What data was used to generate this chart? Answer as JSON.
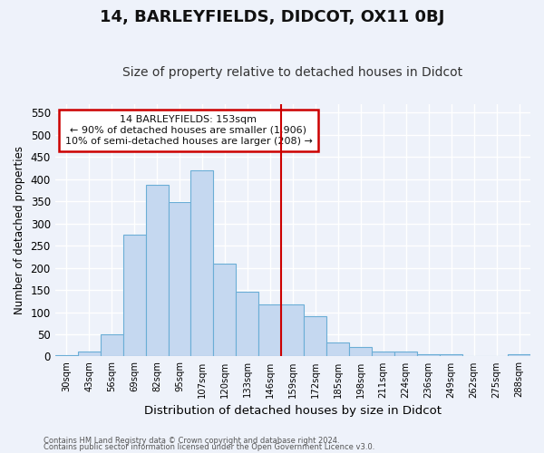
{
  "title": "14, BARLEYFIELDS, DIDCOT, OX11 0BJ",
  "subtitle": "Size of property relative to detached houses in Didcot",
  "xlabel": "Distribution of detached houses by size in Didcot",
  "ylabel": "Number of detached properties",
  "categories": [
    "30sqm",
    "43sqm",
    "56sqm",
    "69sqm",
    "82sqm",
    "95sqm",
    "107sqm",
    "120sqm",
    "133sqm",
    "146sqm",
    "159sqm",
    "172sqm",
    "185sqm",
    "198sqm",
    "211sqm",
    "224sqm",
    "236sqm",
    "249sqm",
    "262sqm",
    "275sqm",
    "288sqm"
  ],
  "values": [
    3,
    12,
    49,
    275,
    387,
    348,
    420,
    209,
    145,
    117,
    117,
    90,
    31,
    21,
    12,
    12,
    5,
    4,
    0,
    0,
    4
  ],
  "bar_color": "#c5d8f0",
  "bar_edge_color": "#6baed6",
  "background_color": "#eef2fa",
  "grid_color": "#ffffff",
  "vline_x_index": 10,
  "vline_color": "#cc0000",
  "annotation_text": "14 BARLEYFIELDS: 153sqm\n← 90% of detached houses are smaller (1,906)\n10% of semi-detached houses are larger (208) →",
  "annotation_box_facecolor": "#ffffff",
  "annotation_box_edgecolor": "#cc0000",
  "ylim": [
    0,
    570
  ],
  "yticks": [
    0,
    50,
    100,
    150,
    200,
    250,
    300,
    350,
    400,
    450,
    500,
    550
  ],
  "title_fontsize": 13,
  "subtitle_fontsize": 10,
  "footer_line1": "Contains HM Land Registry data © Crown copyright and database right 2024.",
  "footer_line2": "Contains public sector information licensed under the Open Government Licence v3.0."
}
